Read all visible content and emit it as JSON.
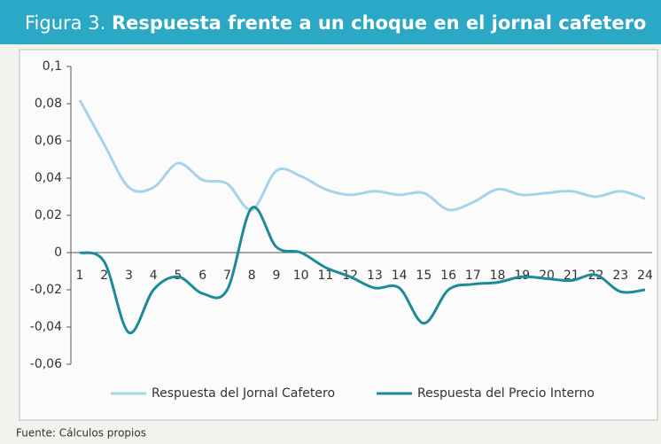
{
  "chart_data": {
    "type": "line",
    "figure_label": "Figura 3.",
    "title": "Respuesta frente a un choque en el jornal cafetero",
    "source": "Fuente: Cálculos propios",
    "categories": [
      "1",
      "2",
      "3",
      "4",
      "5",
      "6",
      "7",
      "8",
      "9",
      "10",
      "11",
      "12",
      "13",
      "14",
      "15",
      "16",
      "17",
      "18",
      "19",
      "20",
      "21",
      "22",
      "23",
      "24"
    ],
    "series": [
      {
        "name": "Respuesta del Jornal Cafetero",
        "color": "#a6d3ea",
        "values": [
          0.082,
          0.058,
          0.035,
          0.035,
          0.048,
          0.039,
          0.037,
          0.023,
          0.044,
          0.041,
          0.034,
          0.031,
          0.033,
          0.031,
          0.032,
          0.023,
          0.027,
          0.034,
          0.031,
          0.032,
          0.033,
          0.03,
          0.033,
          0.029
        ]
      },
      {
        "name": "Respuesta del Precio Interno",
        "color": "#1b8c96",
        "values": [
          0,
          -0.005,
          -0.043,
          -0.02,
          -0.013,
          -0.022,
          -0.02,
          0.024,
          0.003,
          0.0,
          -0.008,
          -0.013,
          -0.019,
          -0.019,
          -0.038,
          -0.02,
          -0.017,
          -0.016,
          -0.013,
          -0.014,
          -0.015,
          -0.012,
          -0.021,
          -0.02
        ]
      }
    ],
    "ylim": [
      -0.06,
      0.1
    ],
    "yticks": [
      {
        "value": 0.1,
        "label": "0,1"
      },
      {
        "value": 0.08,
        "label": "0,08"
      },
      {
        "value": 0.06,
        "label": "0,06"
      },
      {
        "value": 0.04,
        "label": "0,04"
      },
      {
        "value": 0.02,
        "label": "0,02"
      },
      0,
      {
        "value": -0.02,
        "label": "-0,02"
      },
      {
        "value": -0.04,
        "label": "-0,04"
      },
      {
        "value": -0.06,
        "label": "-0,06"
      }
    ]
  }
}
